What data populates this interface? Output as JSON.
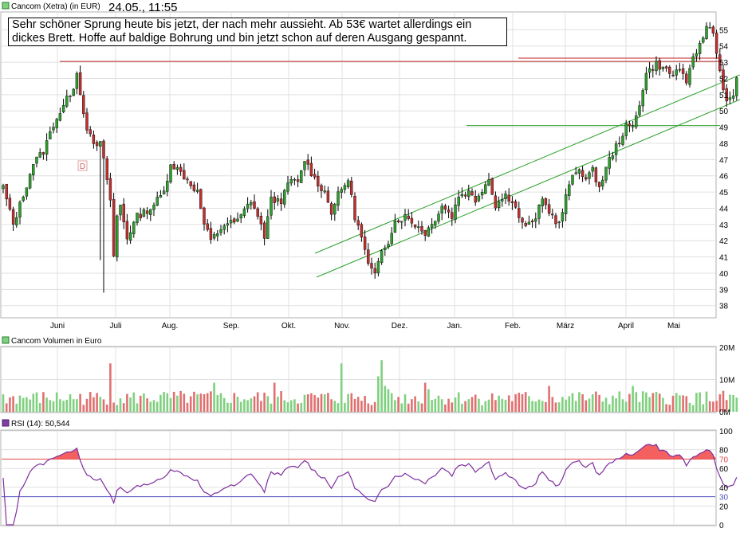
{
  "chart_data": [
    {
      "type": "candlestick",
      "title": "Cancom (Xetra) (in EUR)",
      "timestamp": "24.05., 11:55",
      "annotation_lines": [
        "Sehr schöner Sprung heute bis jetzt, der nach mehr aussieht. Ab 53€ wartet allerdings ein",
        "dickes Brett. Hoffe auf baldige Bohrung und bin jetzt schon auf deren Ausgang gespannt."
      ],
      "month_labels": [
        "Juni",
        "Juli",
        "Aug.",
        "Sep.",
        "Okt.",
        "Nov.",
        "Dez.",
        "Jan.",
        "Feb.",
        "März",
        "April",
        "Mai"
      ],
      "y_ticks": [
        38,
        39,
        40,
        41,
        42,
        43,
        44,
        45,
        46,
        47,
        48,
        49,
        50,
        51,
        52,
        53,
        54,
        55
      ],
      "ylim": [
        37.3,
        56.0
      ],
      "grid": true,
      "dividend_marker": "D",
      "anchors": [
        [
          0,
          45.3
        ],
        [
          3,
          43.0
        ],
        [
          6,
          44.8
        ],
        [
          9,
          46.8
        ],
        [
          12,
          47.5
        ],
        [
          15,
          49.2
        ],
        [
          18,
          50.3
        ],
        [
          21,
          51.5
        ],
        [
          22,
          52.5
        ],
        [
          23,
          51.0
        ],
        [
          25,
          49.0
        ],
        [
          27,
          47.8
        ],
        [
          29,
          48.0
        ],
        [
          31,
          45.8
        ],
        [
          32,
          44.5
        ],
        [
          33,
          41.0
        ],
        [
          34,
          43.5
        ],
        [
          35,
          44.2
        ],
        [
          37,
          42.2
        ],
        [
          40,
          43.5
        ],
        [
          44,
          44.0
        ],
        [
          48,
          45.0
        ],
        [
          50,
          46.8
        ],
        [
          53,
          46.2
        ],
        [
          56,
          45.5
        ],
        [
          58,
          45.0
        ],
        [
          60,
          43.0
        ],
        [
          62,
          42.0
        ],
        [
          66,
          43.0
        ],
        [
          70,
          43.2
        ],
        [
          74,
          44.5
        ],
        [
          76,
          43.5
        ],
        [
          78,
          42.3
        ],
        [
          80,
          44.5
        ],
        [
          83,
          44.5
        ],
        [
          86,
          45.8
        ],
        [
          88,
          45.5
        ],
        [
          90,
          47.0
        ],
        [
          93,
          45.8
        ],
        [
          96,
          45.0
        ],
        [
          98,
          43.8
        ],
        [
          100,
          44.8
        ],
        [
          103,
          45.8
        ],
        [
          105,
          43.5
        ],
        [
          107,
          42.2
        ],
        [
          109,
          40.5
        ],
        [
          111,
          39.8
        ],
        [
          113,
          41.5
        ],
        [
          115,
          42.0
        ],
        [
          117,
          43.2
        ],
        [
          120,
          43.5
        ],
        [
          123,
          43.0
        ],
        [
          126,
          42.5
        ],
        [
          128,
          43.0
        ],
        [
          131,
          44.2
        ],
        [
          134,
          43.5
        ],
        [
          136,
          44.8
        ],
        [
          139,
          45.0
        ],
        [
          141,
          44.5
        ],
        [
          143,
          45.2
        ],
        [
          145,
          45.8
        ],
        [
          147,
          44.2
        ],
        [
          150,
          44.8
        ],
        [
          152,
          44.5
        ],
        [
          155,
          43.0
        ],
        [
          158,
          43.0
        ],
        [
          161,
          44.5
        ],
        [
          164,
          43.5
        ],
        [
          166,
          43.0
        ],
        [
          169,
          45.5
        ],
        [
          172,
          46.5
        ],
        [
          174,
          45.8
        ],
        [
          176,
          46.3
        ],
        [
          178,
          45.3
        ],
        [
          181,
          47.0
        ],
        [
          184,
          48.2
        ],
        [
          186,
          49.0
        ],
        [
          188,
          49.0
        ],
        [
          190,
          50.5
        ],
        [
          192,
          52.3
        ],
        [
          195,
          52.9
        ],
        [
          198,
          52.5
        ],
        [
          200,
          52.2
        ],
        [
          202,
          52.7
        ],
        [
          204,
          51.5
        ],
        [
          206,
          53.4
        ],
        [
          208,
          54.0
        ],
        [
          210,
          55.2
        ],
        [
          212,
          55.0
        ],
        [
          213,
          53.5
        ],
        [
          215,
          51.5
        ],
        [
          216,
          50.5
        ],
        [
          218,
          50.8
        ],
        [
          219,
          52.1
        ]
      ],
      "upper_channel": [
        [
          395,
          318
        ],
        [
          928,
          94
        ]
      ],
      "lower_channel": [
        [
          397,
          348
        ],
        [
          928,
          125
        ]
      ],
      "support_line": {
        "value": 49.1,
        "x_start": 585,
        "x_end": 903
      },
      "resistance_lines": [
        {
          "value": 53.05,
          "x_start": 75,
          "x_end": 903
        },
        {
          "value": 53.25,
          "x_start": 650,
          "x_end": 903
        }
      ]
    },
    {
      "type": "bar",
      "title": "Cancom Volumen in Euro",
      "y_ticks": [
        "0M",
        "10M",
        "20M"
      ],
      "ylim": [
        0,
        20
      ],
      "spikes": [
        [
          32,
          15
        ],
        [
          63,
          9
        ],
        [
          81,
          9
        ],
        [
          101,
          15
        ],
        [
          112,
          11
        ],
        [
          113,
          8
        ],
        [
          114,
          8
        ],
        [
          115,
          7
        ],
        [
          126,
          9
        ],
        [
          127,
          7
        ],
        [
          113,
          16
        ],
        [
          163,
          8
        ],
        [
          188,
          8
        ],
        [
          192,
          6
        ]
      ]
    },
    {
      "type": "line",
      "title": "RSI (14): 50,544",
      "y_ticks": [
        0,
        20,
        30,
        40,
        60,
        70,
        80,
        100
      ],
      "ylim": [
        0,
        100
      ],
      "overbought": 70,
      "oversold": 30,
      "colors": {
        "line": "#7f2f9f",
        "overbought": "#e04848",
        "oversold": "#5050c0",
        "fill": "#f46060"
      }
    }
  ],
  "colors": {
    "up_candle": "#2e9e2e",
    "down_candle": "#c03030",
    "wick": "#000000",
    "grid": "#e0e0e0",
    "channel": "#2aa02a",
    "resistance": "#c02020",
    "volume_up": "#7fd07f",
    "volume_down": "#e07070"
  }
}
